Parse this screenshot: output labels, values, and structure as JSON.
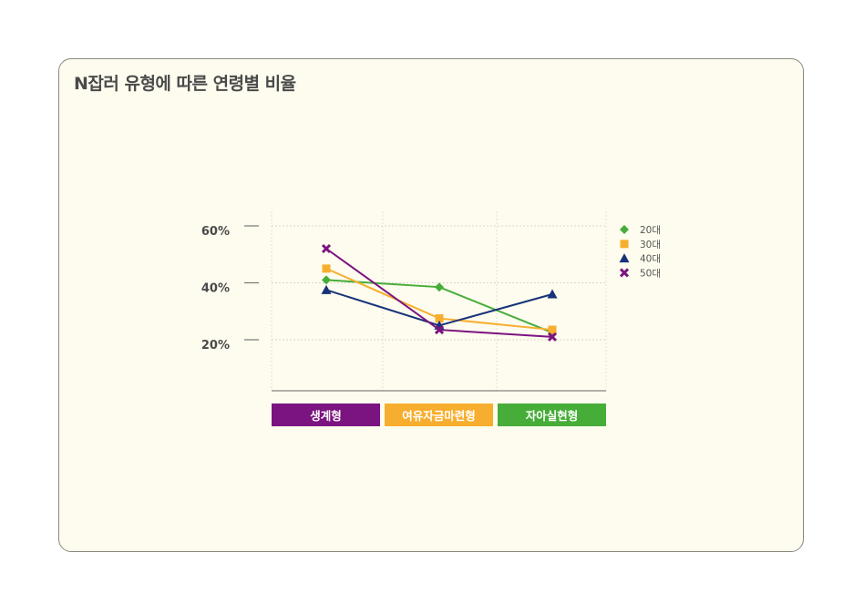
{
  "chart_data": {
    "type": "line",
    "title": "N잡러 유형에 따른 연령별 비율",
    "categories": [
      "생계형",
      "여유자금마련형",
      "자아실현형"
    ],
    "category_colors": [
      "#7b1480",
      "#f7ae2e",
      "#46ad38"
    ],
    "y_ticks": [
      "60%",
      "40%",
      "20%"
    ],
    "ylim": [
      0,
      60
    ],
    "grid": true,
    "legend_position": "right",
    "series": [
      {
        "name": "20대",
        "values": [
          41,
          38.5,
          22.5
        ],
        "color": "#46ad38",
        "marker": "diamond"
      },
      {
        "name": "30대",
        "values": [
          45,
          27.5,
          23.5
        ],
        "color": "#f7ae2e",
        "marker": "square"
      },
      {
        "name": "40대",
        "values": [
          37.5,
          25,
          36
        ],
        "color": "#17327a",
        "marker": "triangle"
      },
      {
        "name": "50대",
        "values": [
          52,
          23.5,
          21
        ],
        "color": "#7b1480",
        "marker": "x"
      }
    ]
  }
}
